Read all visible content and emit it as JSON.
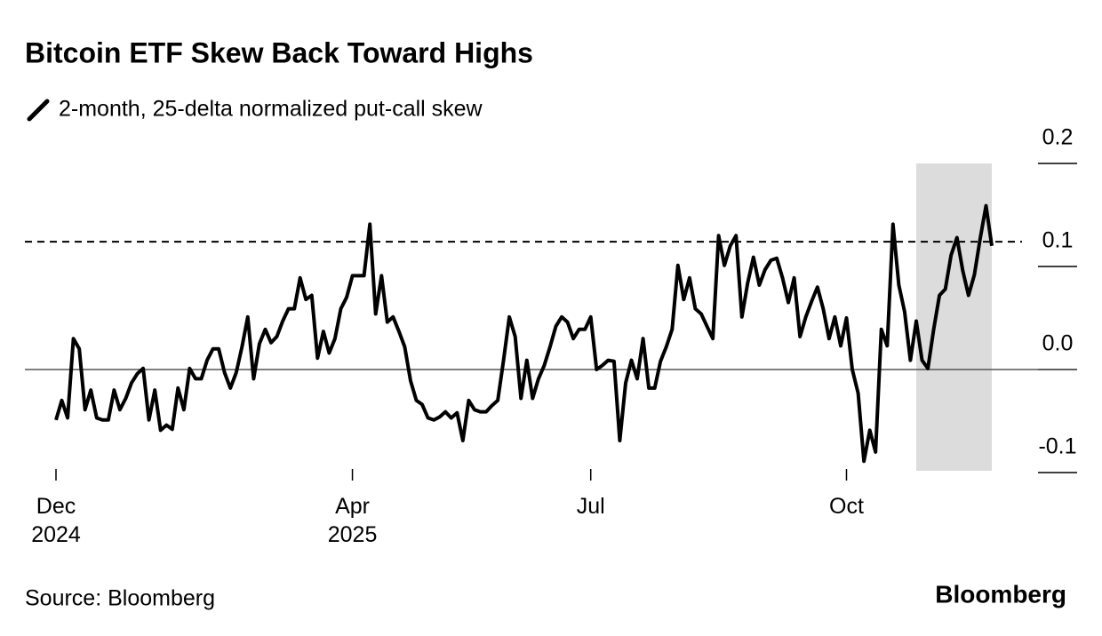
{
  "chart_data": {
    "type": "line",
    "title": "Bitcoin ETF Skew Back Toward Highs",
    "source": "Source: Bloomberg",
    "brand": "Bloomberg",
    "series": [
      {
        "name": "2-month, 25-delta normalized put-call skew",
        "color": "#000000",
        "values": [
          -0.049,
          -0.03,
          -0.047,
          0.03,
          0.02,
          -0.039,
          -0.02,
          -0.047,
          -0.049,
          -0.049,
          -0.02,
          -0.039,
          -0.028,
          -0.013,
          -0.004,
          0.001,
          -0.049,
          -0.02,
          -0.059,
          -0.054,
          -0.058,
          -0.018,
          -0.039,
          0.001,
          -0.009,
          -0.009,
          0.009,
          0.02,
          0.02,
          -0.003,
          -0.018,
          -0.003,
          0.022,
          0.051,
          -0.009,
          0.025,
          0.039,
          0.026,
          0.032,
          0.047,
          0.059,
          0.059,
          0.089,
          0.068,
          0.072,
          0.011,
          0.037,
          0.016,
          0.03,
          0.059,
          0.07,
          0.091,
          0.091,
          0.091,
          0.141,
          0.054,
          0.091,
          0.046,
          0.051,
          0.037,
          0.022,
          -0.011,
          -0.03,
          -0.034,
          -0.047,
          -0.049,
          -0.046,
          -0.041,
          -0.047,
          -0.042,
          -0.069,
          -0.03,
          -0.039,
          -0.041,
          -0.041,
          -0.035,
          -0.03,
          0.009,
          0.051,
          0.032,
          -0.028,
          0.009,
          -0.028,
          -0.009,
          0.004,
          0.022,
          0.042,
          0.051,
          0.046,
          0.03,
          0.039,
          0.039,
          0.051,
          0.0,
          0.004,
          0.009,
          0.008,
          -0.069,
          -0.013,
          0.009,
          -0.009,
          0.03,
          -0.018,
          -0.018,
          0.008,
          0.022,
          0.039,
          0.101,
          0.068,
          0.089,
          0.059,
          0.054,
          0.042,
          0.03,
          0.13,
          0.101,
          0.12,
          0.13,
          0.051,
          0.084,
          0.109,
          0.082,
          0.097,
          0.106,
          0.108,
          0.089,
          0.065,
          0.089,
          0.032,
          0.051,
          0.066,
          0.08,
          0.059,
          0.03,
          0.051,
          0.023,
          0.05,
          0.0,
          -0.023,
          -0.089,
          -0.059,
          -0.08,
          0.039,
          0.023,
          0.141,
          0.082,
          0.056,
          0.009,
          0.047,
          0.009,
          0.001,
          0.039,
          0.072,
          0.078,
          0.111,
          0.128,
          0.096,
          0.072,
          0.092,
          0.127,
          0.159,
          0.12
        ]
      }
    ],
    "categories": [
      "Dec 2024",
      null,
      null,
      null,
      null,
      null,
      null,
      null,
      null,
      null,
      null,
      null,
      null,
      null,
      null,
      null,
      null,
      null,
      null,
      null,
      null,
      null,
      null,
      null,
      null,
      null,
      null,
      null,
      null,
      null,
      null,
      null,
      null,
      null,
      null,
      null,
      null,
      null,
      null,
      null,
      null,
      null,
      null,
      null,
      null,
      null,
      null,
      null,
      null,
      null,
      null,
      "Apr 2025",
      null,
      null,
      null,
      null,
      null,
      null,
      null,
      null,
      null,
      null,
      null,
      null,
      null,
      null,
      null,
      null,
      null,
      null,
      null,
      null,
      null,
      null,
      null,
      null,
      null,
      null,
      null,
      null,
      null,
      null,
      null,
      null,
      null,
      null,
      null,
      null,
      null,
      null,
      null,
      null,
      "Jul",
      null,
      null,
      null,
      null,
      null,
      null,
      null,
      null,
      null,
      null,
      null,
      null,
      null,
      null,
      null,
      null,
      null,
      null,
      null,
      null,
      null,
      null,
      null,
      null,
      null,
      null,
      null,
      null,
      null,
      null,
      null,
      null,
      null,
      null,
      null,
      null,
      null,
      null,
      null,
      null,
      null,
      null,
      null,
      "Oct",
      null,
      null,
      null,
      null,
      null,
      null,
      null,
      null,
      null,
      null,
      null,
      null,
      null,
      null,
      null,
      null,
      null,
      null,
      null,
      null,
      null,
      null,
      null,
      null,
      null
    ],
    "ylim": [
      -0.1,
      0.2
    ],
    "yticks": [
      -0.1,
      {
        "value": 0,
        "label": "0.0"
      },
      0.1,
      0.2
    ],
    "hline": {
      "value": 0.124,
      "style": "dashed"
    },
    "shaded_range": [
      148,
      161
    ],
    "shade_color": "#dcdcdc"
  }
}
